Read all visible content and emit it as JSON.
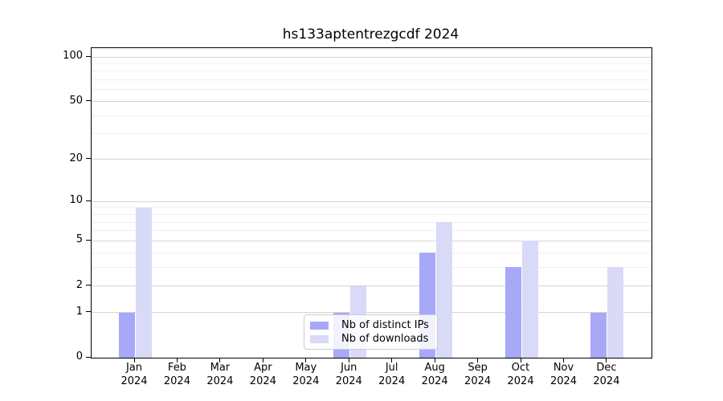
{
  "title": "hs133aptentrezgcdf 2024",
  "colors": {
    "distinct_ips": "#a8a8f8",
    "downloads": "#d9d9f8",
    "grid_major": "#d4d4d4",
    "grid_minor": "#efefef",
    "axis": "#000000",
    "legend_border": "#cccccc"
  },
  "legend": {
    "items": [
      {
        "label": "Nb of distinct IPs",
        "color_key": "distinct_ips"
      },
      {
        "label": "Nb of downloads",
        "color_key": "downloads"
      }
    ]
  },
  "y_axis": {
    "tick_labels": [
      "0",
      "1",
      "2",
      "5",
      "10",
      "20",
      "50",
      "100"
    ]
  },
  "chart_data": {
    "type": "bar",
    "title": "hs133aptentrezgcdf 2024",
    "categories": [
      "Jan 2024",
      "Feb 2024",
      "Mar 2024",
      "Apr 2024",
      "May 2024",
      "Jun 2024",
      "Jul 2024",
      "Aug 2024",
      "Sep 2024",
      "Oct 2024",
      "Nov 2024",
      "Dec 2024"
    ],
    "series": [
      {
        "name": "Nb of distinct IPs",
        "color_key": "distinct_ips",
        "values": [
          1,
          0,
          0,
          0,
          0,
          1,
          0,
          4,
          0,
          3,
          0,
          1
        ]
      },
      {
        "name": "Nb of downloads",
        "color_key": "downloads",
        "values": [
          9,
          0,
          0,
          0,
          0,
          2,
          0,
          7,
          0,
          5,
          0,
          3
        ]
      }
    ],
    "yscale": "log1p",
    "yticks_major": [
      0,
      1,
      2,
      5,
      10,
      20,
      50,
      100
    ],
    "yticks_minor": [
      3,
      4,
      6,
      7,
      8,
      9,
      30,
      40,
      60,
      70,
      80,
      90
    ],
    "ylim": [
      0,
      115
    ],
    "xlabel": "",
    "ylabel": "",
    "grid": true,
    "legend_position": "lower center"
  }
}
